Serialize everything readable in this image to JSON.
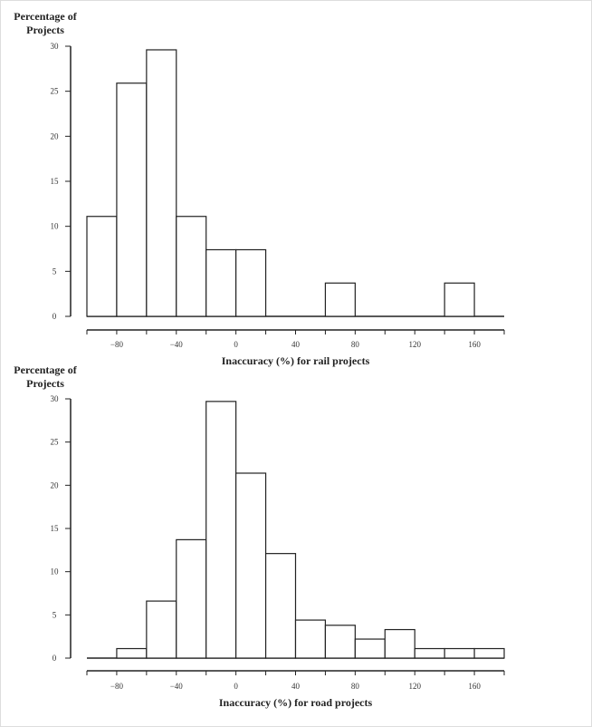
{
  "chart_data": [
    {
      "type": "bar",
      "title": "",
      "ylabel_line1": "Percentage of",
      "ylabel_line2": "Projects",
      "xlabel": "Inaccuracy (%) for rail projects",
      "ylim": [
        0,
        30
      ],
      "xlim": [
        -100,
        180
      ],
      "yticks": [
        "0",
        "5",
        "10",
        "15",
        "20",
        "25",
        "30"
      ],
      "xticks": [
        "−80",
        "−40",
        "0",
        "40",
        "80",
        "120",
        "160"
      ],
      "bins": [
        {
          "from": -100,
          "to": -80,
          "value": 11.1
        },
        {
          "from": -80,
          "to": -60,
          "value": 25.9
        },
        {
          "from": -60,
          "to": -40,
          "value": 29.6
        },
        {
          "from": -40,
          "to": -20,
          "value": 11.1
        },
        {
          "from": -20,
          "to": 0,
          "value": 7.4
        },
        {
          "from": 0,
          "to": 20,
          "value": 7.4
        },
        {
          "from": 60,
          "to": 80,
          "value": 3.7
        },
        {
          "from": 140,
          "to": 160,
          "value": 3.7
        }
      ]
    },
    {
      "type": "bar",
      "title": "",
      "ylabel_line1": "Percentage of",
      "ylabel_line2": "Projects",
      "xlabel": "Inaccuracy (%) for road projects",
      "ylim": [
        0,
        30
      ],
      "xlim": [
        -100,
        180
      ],
      "yticks": [
        "0",
        "5",
        "10",
        "15",
        "20",
        "25",
        "30"
      ],
      "xticks": [
        "−80",
        "−40",
        "0",
        "40",
        "80",
        "120",
        "160"
      ],
      "bins": [
        {
          "from": -80,
          "to": -60,
          "value": 1.1
        },
        {
          "from": -60,
          "to": -40,
          "value": 6.6
        },
        {
          "from": -40,
          "to": -20,
          "value": 13.7
        },
        {
          "from": -20,
          "to": 0,
          "value": 29.7
        },
        {
          "from": 0,
          "to": 20,
          "value": 21.4
        },
        {
          "from": 20,
          "to": 40,
          "value": 12.1
        },
        {
          "from": 40,
          "to": 60,
          "value": 4.4
        },
        {
          "from": 60,
          "to": 80,
          "value": 3.8
        },
        {
          "from": 80,
          "to": 100,
          "value": 2.2
        },
        {
          "from": 100,
          "to": 120,
          "value": 3.3
        },
        {
          "from": 120,
          "to": 140,
          "value": 1.1
        },
        {
          "from": 140,
          "to": 160,
          "value": 1.1
        },
        {
          "from": 160,
          "to": 180,
          "value": 1.1
        }
      ]
    }
  ]
}
